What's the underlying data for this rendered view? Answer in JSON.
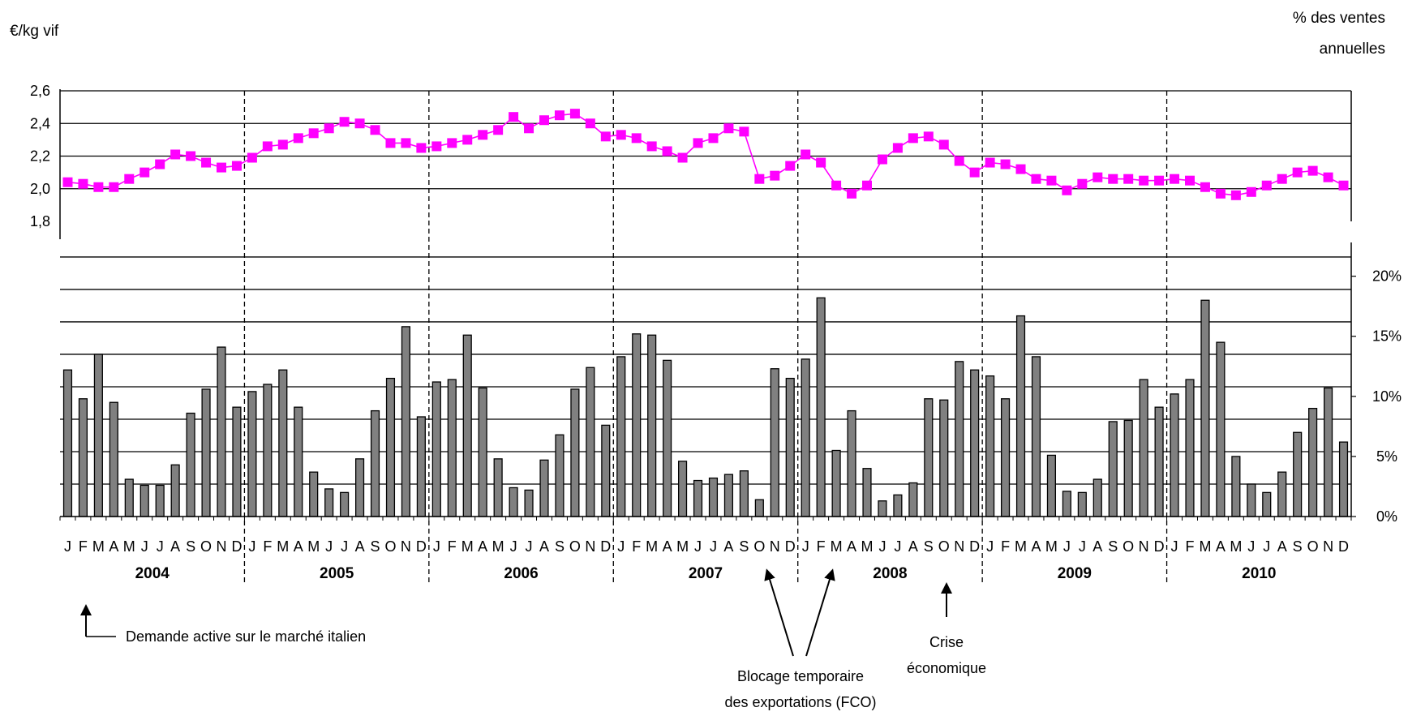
{
  "chart_data": {
    "type": "line+bar",
    "title": "",
    "left_unit_label": "€/kg vif",
    "right_unit_label_lines": [
      "% des ventes",
      "annuelles"
    ],
    "price_axis": {
      "ylim": [
        1.8,
        2.6
      ],
      "ticks": [
        1.8,
        2.0,
        2.2,
        2.4,
        2.6
      ],
      "tick_labels": [
        "1,8",
        "2,0",
        "2,2",
        "2,4",
        "2,6"
      ]
    },
    "share_axis": {
      "ylim": [
        0,
        22
      ],
      "ticks": [
        0,
        5,
        10,
        15,
        20
      ],
      "tick_labels": [
        "0%",
        "5%",
        "10%",
        "15%",
        "20%"
      ],
      "gridlines": [
        2.7,
        5.4,
        8.1,
        10.8,
        13.5,
        16.2,
        18.9,
        21.6
      ]
    },
    "years": [
      "2004",
      "2005",
      "2006",
      "2007",
      "2008",
      "2009",
      "2010"
    ],
    "month_labels": [
      "J",
      "F",
      "M",
      "A",
      "M",
      "J",
      "J",
      "A",
      "S",
      "O",
      "N",
      "D"
    ],
    "series": [
      {
        "kind": "line",
        "color": "#ff00ff",
        "values": [
          2.04,
          2.03,
          2.01,
          2.01,
          2.06,
          2.1,
          2.15,
          2.21,
          2.2,
          2.16,
          2.13,
          2.14,
          2.19,
          2.26,
          2.27,
          2.31,
          2.34,
          2.37,
          2.41,
          2.4,
          2.36,
          2.28,
          2.28,
          2.25,
          2.26,
          2.28,
          2.3,
          2.33,
          2.36,
          2.44,
          2.37,
          2.42,
          2.45,
          2.46,
          2.4,
          2.32,
          2.33,
          2.31,
          2.26,
          2.23,
          2.19,
          2.28,
          2.31,
          2.37,
          2.35,
          2.06,
          2.08,
          2.14,
          2.21,
          2.16,
          2.02,
          1.97,
          2.02,
          2.18,
          2.25,
          2.31,
          2.32,
          2.27,
          2.17,
          2.1,
          2.16,
          2.15,
          2.12,
          2.06,
          2.05,
          1.99,
          2.03,
          2.07,
          2.06,
          2.06,
          2.05,
          2.05,
          2.06,
          2.05,
          2.01,
          1.97,
          1.96,
          1.98,
          2.02,
          2.06,
          2.1,
          2.11,
          2.07,
          2.02
        ]
      },
      {
        "kind": "bar",
        "color": "#808080",
        "values": [
          12.2,
          9.8,
          13.5,
          9.5,
          3.1,
          2.6,
          2.6,
          4.3,
          8.6,
          10.6,
          14.1,
          9.1,
          10.4,
          11.0,
          12.2,
          9.1,
          3.7,
          2.3,
          2.0,
          4.8,
          8.8,
          11.5,
          15.8,
          8.3,
          11.2,
          11.4,
          15.1,
          10.7,
          4.8,
          2.4,
          2.2,
          4.7,
          6.8,
          10.6,
          12.4,
          7.6,
          13.3,
          15.2,
          15.1,
          13.0,
          4.6,
          3.0,
          3.2,
          3.5,
          3.8,
          1.4,
          12.3,
          11.5,
          13.1,
          18.2,
          5.5,
          8.8,
          4.0,
          1.3,
          1.8,
          2.8,
          9.8,
          9.7,
          12.9,
          12.2,
          11.7,
          9.8,
          16.7,
          13.3,
          5.1,
          2.1,
          2.0,
          3.1,
          7.9,
          8.0,
          11.4,
          9.1,
          10.2,
          11.4,
          18.0,
          14.5,
          5.0,
          2.7,
          2.0,
          3.7,
          7.0,
          9.0,
          10.7,
          6.2
        ]
      }
    ],
    "annotations": {
      "italy": "Demande active sur le marché italien",
      "fco_line1": "Blocage temporaire",
      "fco_line2": "des exportations  (FCO)",
      "crise_line1": "Crise",
      "crise_line2": "économique"
    }
  }
}
